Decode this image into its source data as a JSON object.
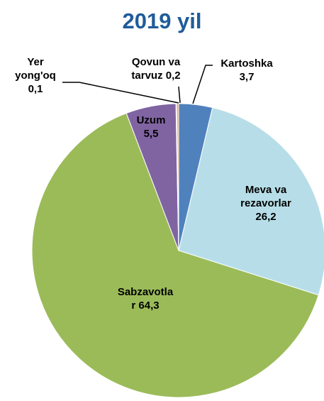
{
  "chart_data": {
    "type": "pie",
    "title": "2019 yil",
    "categories": [
      "Kartoshka",
      "Meva va rezavorlar",
      "Sabzavotlar",
      "Uzum",
      "Yer yong'oq",
      "Qovun va tarvuz"
    ],
    "values": [
      3.7,
      26.2,
      64.3,
      5.5,
      0.1,
      0.2
    ],
    "value_labels": [
      "3,7",
      "26,2",
      "64,3",
      "5,5",
      "0,1",
      "0,2"
    ],
    "colors": [
      "#4f81bd",
      "#b7dee8",
      "#9bbb59",
      "#8064a2",
      "#c0504d",
      "#f79646"
    ]
  }
}
